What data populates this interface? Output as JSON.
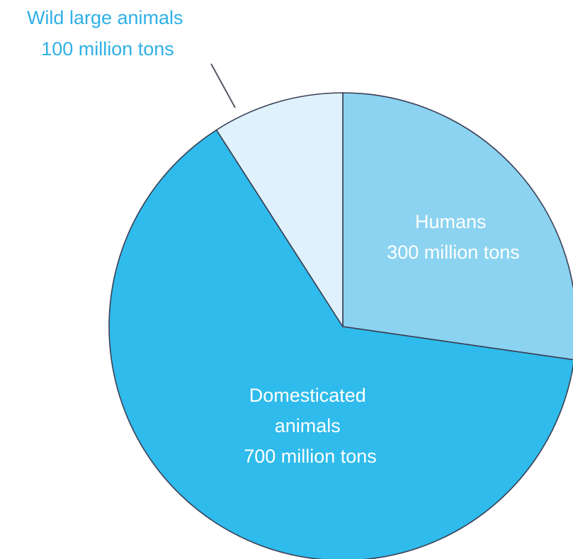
{
  "chart_data": {
    "type": "pie",
    "slices": [
      {
        "key": "humans",
        "value": 300,
        "color": "#8bd3f0",
        "label_lines": [
          "Humans",
          "300 million tons"
        ],
        "label_color": "#ffffff"
      },
      {
        "key": "domesticated",
        "value": 700,
        "color": "#2fbbeb",
        "label_lines": [
          "Domesticated",
          "animals",
          "700 million tons"
        ],
        "label_color": "#ffffff"
      },
      {
        "key": "wild",
        "value": 100,
        "color": "#dff2fb",
        "label_lines": [
          "Wild large animals",
          "100 million tons"
        ],
        "label_color": "#2fb0e6"
      }
    ],
    "unit": "million tons",
    "start_angle_deg": 0,
    "direction": "clockwise",
    "outline_color": "#3a3f55"
  }
}
